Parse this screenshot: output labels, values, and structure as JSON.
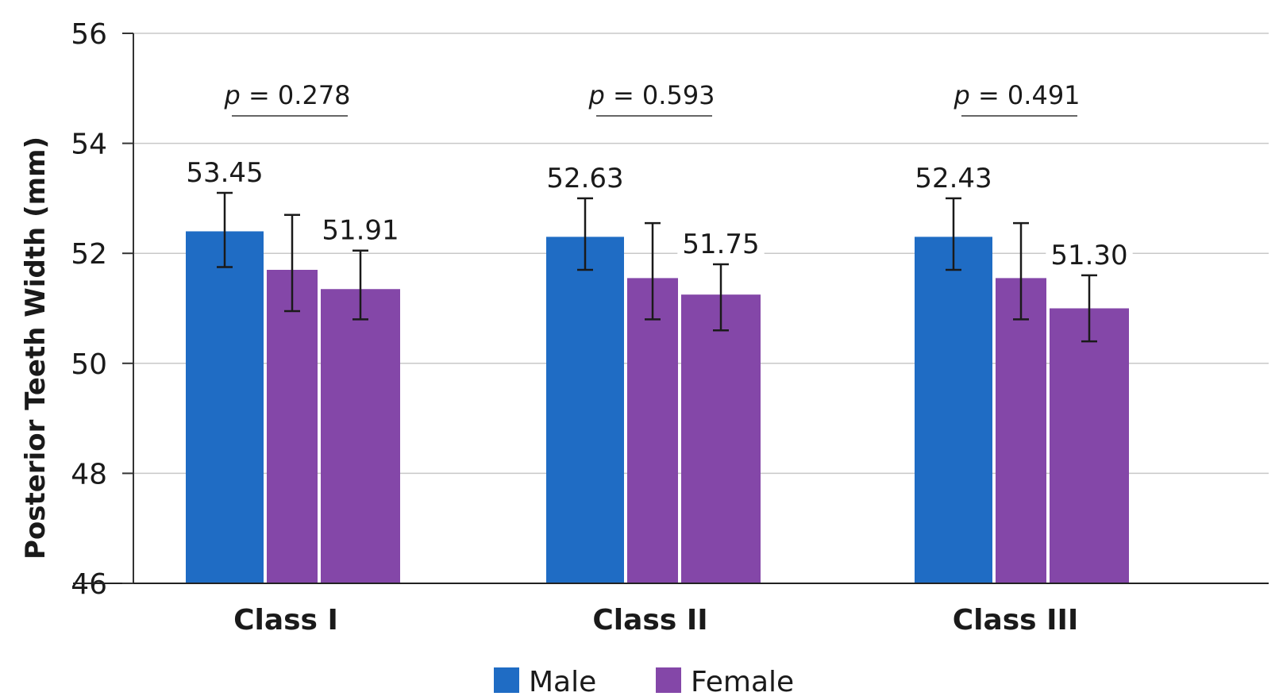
{
  "chart_data": {
    "type": "bar",
    "categories": [
      "Class I",
      "Class II",
      "Class III"
    ],
    "ylabel": "Posterior Teeth Width (mm)",
    "ylim": [
      46,
      56
    ],
    "yticks": [
      46,
      48,
      50,
      52,
      54,
      56
    ],
    "grid": "horizontal",
    "legend_position": "bottom",
    "colors": {
      "male": "#1f6cc4",
      "female": "#8447a8"
    },
    "legend": [
      "Male",
      "Female"
    ],
    "bars": [
      {
        "category": "Class I",
        "series": "Male",
        "value": 52.4,
        "error_low": 51.75,
        "error_high": 53.1,
        "label": "53.45"
      },
      {
        "category": "Class I",
        "series": "Female",
        "value": 51.7,
        "error_low": 50.95,
        "error_high": 52.7,
        "label": ""
      },
      {
        "category": "Class I",
        "series": "Female",
        "value": 51.35,
        "error_low": 50.8,
        "error_high": 52.05,
        "label": "51.91"
      },
      {
        "category": "Class II",
        "series": "Male",
        "value": 52.3,
        "error_low": 51.7,
        "error_high": 53.0,
        "label": "52.63"
      },
      {
        "category": "Class II",
        "series": "Female",
        "value": 51.55,
        "error_low": 50.8,
        "error_high": 52.55,
        "label": ""
      },
      {
        "category": "Class II",
        "series": "Female",
        "value": 51.25,
        "error_low": 50.6,
        "error_high": 51.8,
        "label": "51.75"
      },
      {
        "category": "Class III",
        "series": "Male",
        "value": 52.3,
        "error_low": 51.7,
        "error_high": 53.0,
        "label": "52.43"
      },
      {
        "category": "Class III",
        "series": "Female",
        "value": 51.55,
        "error_low": 50.8,
        "error_high": 52.55,
        "label": ""
      },
      {
        "category": "Class III",
        "series": "Female",
        "value": 51.0,
        "error_low": 50.4,
        "error_high": 51.6,
        "label": "51.30"
      }
    ],
    "p_values": [
      {
        "category": "Class I",
        "text": "= 0.278"
      },
      {
        "category": "Class II",
        "text": "= 0.593"
      },
      {
        "category": "Class III",
        "text": "= 0.491"
      }
    ],
    "p_symbol": "p"
  }
}
